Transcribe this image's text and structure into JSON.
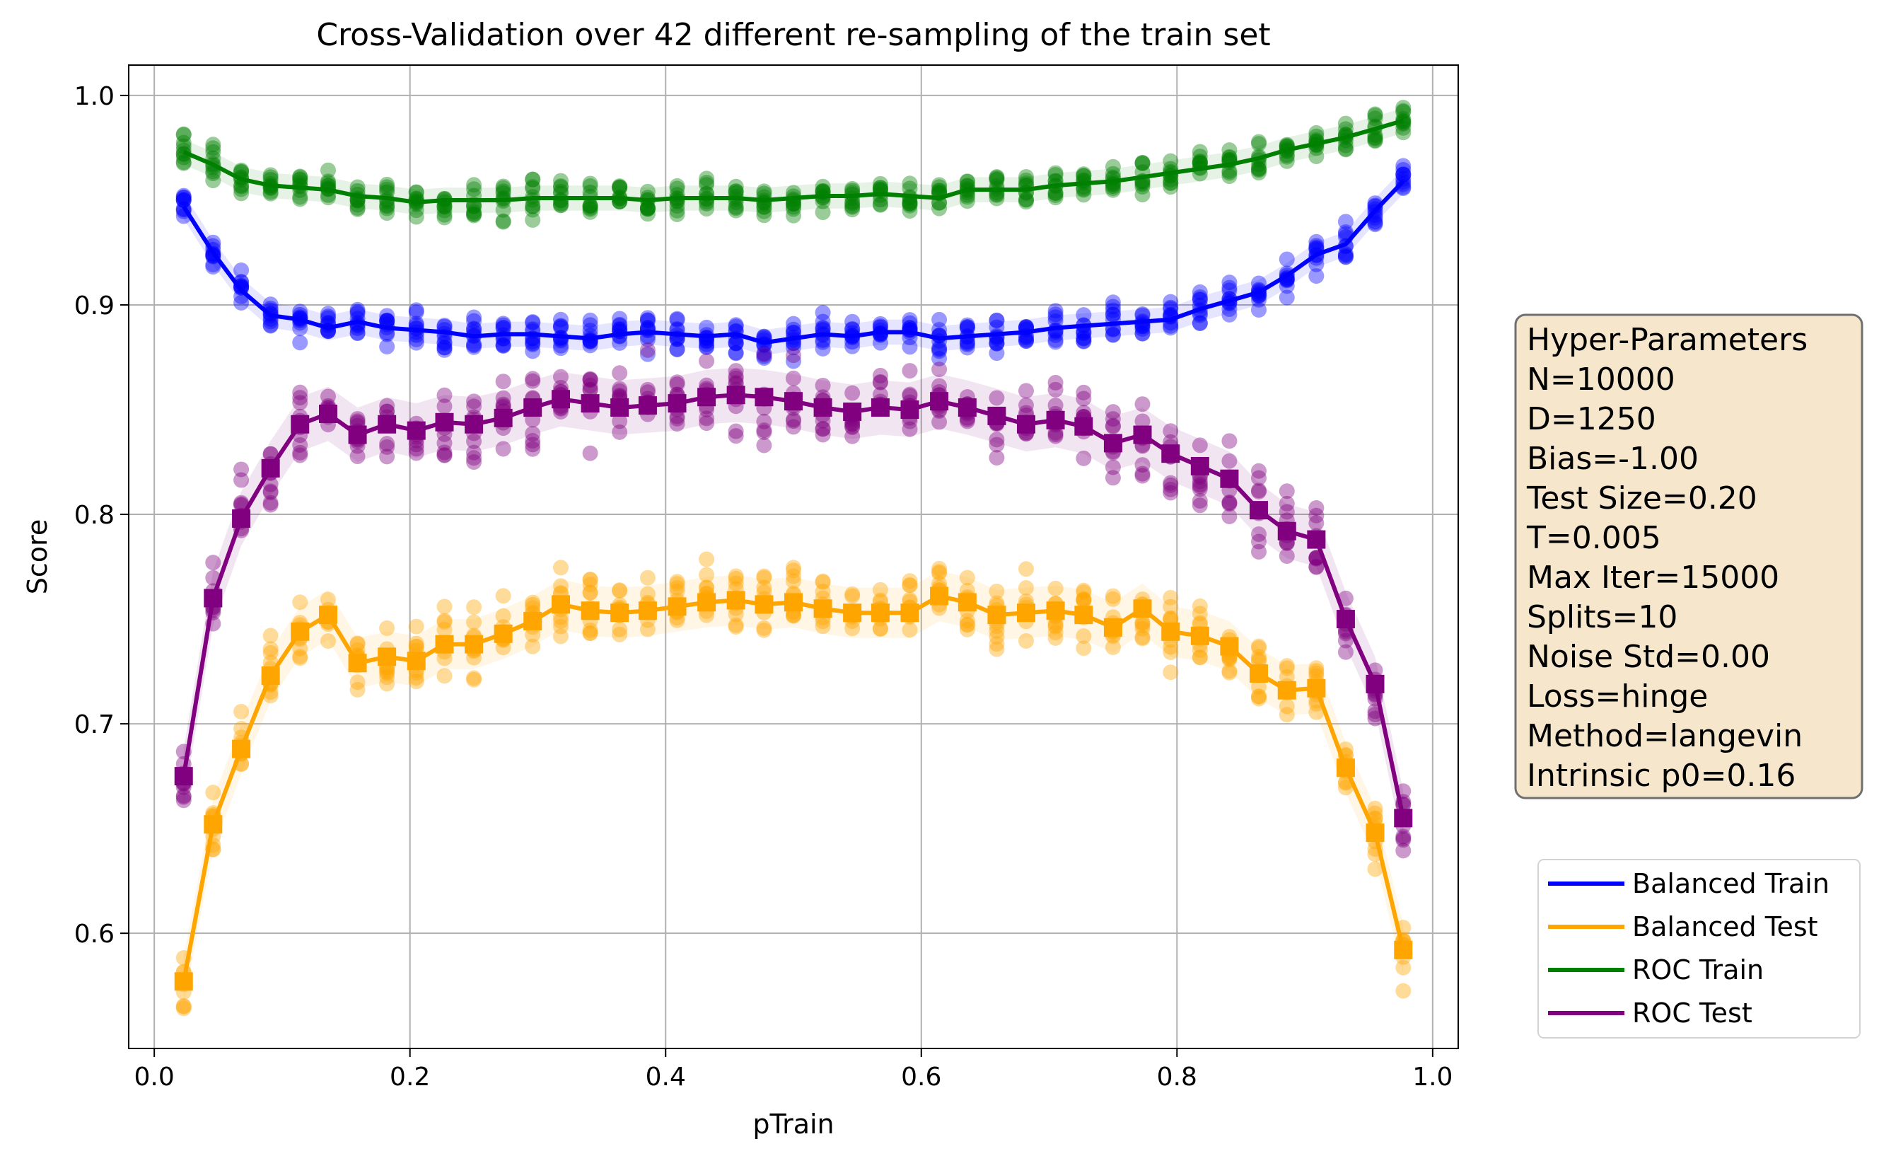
{
  "chart_data": {
    "type": "line",
    "title": "Cross-Validation over 42 different re-sampling of the train set",
    "xlabel": "pTrain",
    "ylabel": "Score",
    "xlim": [
      -0.02,
      1.02
    ],
    "ylim": [
      0.545,
      1.0145
    ],
    "xticks": [
      "0.0",
      "0.2",
      "0.4",
      "0.6",
      "0.8",
      "1.0"
    ],
    "yticks": [
      "0.6",
      "0.7",
      "0.8",
      "0.9",
      "1.0"
    ],
    "grid": true,
    "legend_position": "right",
    "x": [
      0.023,
      0.046,
      0.068,
      0.091,
      0.114,
      0.136,
      0.159,
      0.182,
      0.205,
      0.227,
      0.25,
      0.273,
      0.296,
      0.318,
      0.341,
      0.364,
      0.386,
      0.409,
      0.432,
      0.455,
      0.477,
      0.5,
      0.523,
      0.546,
      0.568,
      0.591,
      0.614,
      0.636,
      0.659,
      0.682,
      0.705,
      0.727,
      0.75,
      0.773,
      0.795,
      0.818,
      0.841,
      0.864,
      0.886,
      0.909,
      0.932,
      0.955,
      0.977
    ],
    "series": [
      {
        "name": "Balanced Train",
        "color": "#0000ff",
        "marker": "circle",
        "values": [
          0.947,
          0.925,
          0.907,
          0.895,
          0.893,
          0.889,
          0.892,
          0.889,
          0.888,
          0.887,
          0.885,
          0.886,
          0.886,
          0.885,
          0.884,
          0.886,
          0.887,
          0.886,
          0.885,
          0.886,
          0.882,
          0.884,
          0.886,
          0.885,
          0.887,
          0.887,
          0.884,
          0.885,
          0.886,
          0.887,
          0.889,
          0.89,
          0.891,
          0.892,
          0.893,
          0.898,
          0.902,
          0.906,
          0.914,
          0.924,
          0.929,
          0.945,
          0.959
        ]
      },
      {
        "name": "Balanced Test",
        "color": "#ffa500",
        "marker": "square",
        "values": [
          0.577,
          0.652,
          0.688,
          0.723,
          0.744,
          0.752,
          0.729,
          0.732,
          0.73,
          0.738,
          0.738,
          0.743,
          0.749,
          0.757,
          0.754,
          0.753,
          0.754,
          0.756,
          0.758,
          0.759,
          0.757,
          0.758,
          0.755,
          0.753,
          0.753,
          0.753,
          0.761,
          0.758,
          0.752,
          0.753,
          0.754,
          0.752,
          0.746,
          0.755,
          0.744,
          0.742,
          0.737,
          0.724,
          0.716,
          0.717,
          0.679,
          0.648,
          0.592
        ]
      },
      {
        "name": "ROC Train",
        "color": "#008000",
        "marker": "circle",
        "values": [
          0.973,
          0.967,
          0.96,
          0.957,
          0.956,
          0.955,
          0.952,
          0.951,
          0.949,
          0.95,
          0.95,
          0.95,
          0.951,
          0.951,
          0.951,
          0.951,
          0.95,
          0.951,
          0.951,
          0.951,
          0.95,
          0.951,
          0.952,
          0.952,
          0.953,
          0.952,
          0.951,
          0.955,
          0.955,
          0.955,
          0.957,
          0.958,
          0.959,
          0.961,
          0.963,
          0.965,
          0.967,
          0.97,
          0.974,
          0.977,
          0.98,
          0.984,
          0.988
        ]
      },
      {
        "name": "ROC Test",
        "color": "#800080",
        "marker": "square",
        "values": [
          0.675,
          0.76,
          0.798,
          0.822,
          0.843,
          0.848,
          0.838,
          0.843,
          0.84,
          0.844,
          0.843,
          0.846,
          0.851,
          0.855,
          0.853,
          0.851,
          0.852,
          0.853,
          0.856,
          0.857,
          0.856,
          0.854,
          0.851,
          0.849,
          0.851,
          0.85,
          0.854,
          0.851,
          0.847,
          0.843,
          0.845,
          0.842,
          0.834,
          0.838,
          0.829,
          0.823,
          0.817,
          0.802,
          0.792,
          0.788,
          0.75,
          0.719,
          0.655
        ]
      }
    ],
    "hyper_parameters": [
      "Hyper-Parameters",
      "N=10000",
      "D=1250",
      "Bias=-1.00",
      "Test Size=0.20",
      "T=0.005",
      "Max Iter=15000",
      "Splits=10",
      "Noise Std=0.00",
      "Loss=hinge",
      "Method=langevin",
      "Intrinsic p0=0.16"
    ],
    "hyper_box_fill": "#f5e6cc"
  }
}
